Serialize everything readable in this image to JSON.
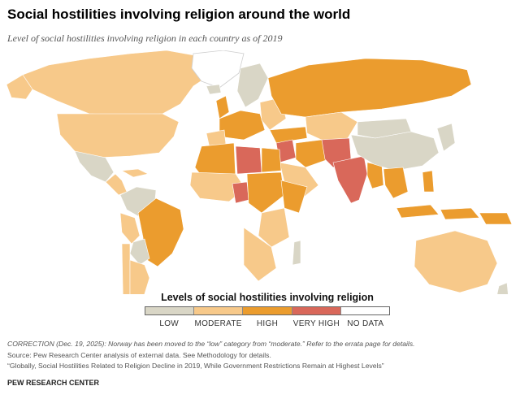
{
  "title": "Social hostilities involving religion around the world",
  "subtitle": "Level of social hostilities involving religion in each country as of 2019",
  "legend": {
    "title": "Levels of social hostilities involving religion",
    "items": [
      {
        "label": "LOW",
        "color": "#d9d6c6"
      },
      {
        "label": "MODERATE",
        "color": "#f7c98a"
      },
      {
        "label": "HIGH",
        "color": "#eb9c2e"
      },
      {
        "label": "VERY HIGH",
        "color": "#d9685a"
      },
      {
        "label": "NO DATA",
        "color": "#ffffff"
      }
    ]
  },
  "notes": {
    "correction": "CORRECTION (Dec. 19, 2025): Norway has been moved to the “low” category from “moderate.” Refer to the errata page for details.",
    "source": "Source: Pew Research Center analysis of external data. See Methodology for details.",
    "report": "“Globally, Social Hostilities Related to Religion Decline in 2019, While Government Restrictions Remain at Highest Levels”"
  },
  "credit": "PEW RESEARCH CENTER"
}
